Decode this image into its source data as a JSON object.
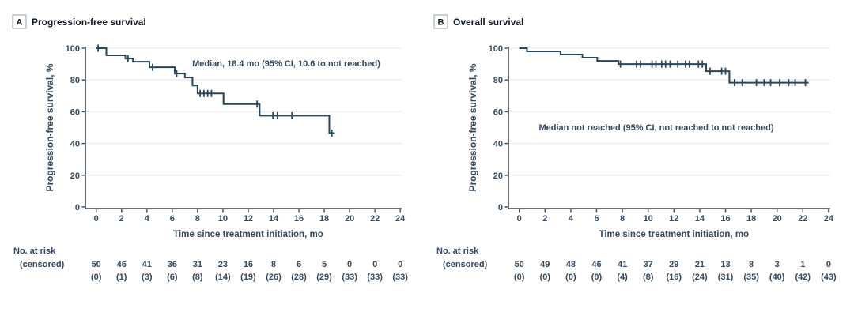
{
  "figure": {
    "background": "#ffffff"
  },
  "colors": {
    "curve": "#2a4658",
    "text": "#35485c",
    "title": "#101820",
    "axis": "#3f4750",
    "grid": "#ececec",
    "box_border": "#9aa0a6"
  },
  "chart_data": [
    {
      "type": "km_step",
      "panel_label": "A",
      "title": "Progression-free survival",
      "ylabel": "Progression-free survival, %",
      "xlabel": "Time since treatment initiation, mo",
      "annotation": "Median, 18.4 mo (95% CI, 10.6 to not reached)",
      "xlim": [
        0,
        24
      ],
      "ylim": [
        0,
        100
      ],
      "xticks": [
        0,
        2,
        4,
        6,
        8,
        10,
        12,
        14,
        16,
        18,
        20,
        22,
        24
      ],
      "yticks": [
        0,
        20,
        40,
        60,
        80,
        100
      ],
      "grid": "horizontal",
      "steps": [
        [
          0,
          100
        ],
        [
          0.8,
          95.5
        ],
        [
          2.3,
          93.5
        ],
        [
          2.9,
          91.5
        ],
        [
          4.2,
          88
        ],
        [
          6.2,
          84
        ],
        [
          7.0,
          81.5
        ],
        [
          7.6,
          76.5
        ],
        [
          8.0,
          71.5
        ],
        [
          10.05,
          64.8
        ],
        [
          12.9,
          57.5
        ],
        [
          18.4,
          46.5
        ]
      ],
      "end_time": 18.85,
      "censors": [
        [
          0.15,
          100
        ],
        [
          2.5,
          93.5
        ],
        [
          4.45,
          88
        ],
        [
          6.35,
          84
        ],
        [
          8.2,
          71.5
        ],
        [
          8.5,
          71.5
        ],
        [
          8.8,
          71.5
        ],
        [
          9.1,
          71.5
        ],
        [
          10.05,
          68
        ],
        [
          12.7,
          64.8
        ],
        [
          13.95,
          57.5
        ],
        [
          14.3,
          57.5
        ],
        [
          15.45,
          57.5
        ],
        [
          18.6,
          46.5
        ]
      ],
      "risk_label_line1": "No. at risk",
      "risk_label_line2": "(censored)",
      "risk_times": [
        0,
        2,
        4,
        6,
        8,
        10,
        12,
        14,
        16,
        18,
        20,
        22,
        24
      ],
      "at_risk": [
        "50",
        "46",
        "41",
        "36",
        "31",
        "23",
        "16",
        "8",
        "6",
        "5",
        "0",
        "0",
        "0"
      ],
      "censored": [
        "(0)",
        "(1)",
        "(3)",
        "(6)",
        "(8)",
        "(14)",
        "(19)",
        "(26)",
        "(28)",
        "(29)",
        "(33)",
        "(33)",
        "(33)"
      ]
    },
    {
      "type": "km_step",
      "panel_label": "B",
      "title": "Overall survival",
      "ylabel": "Progression-free survival, %",
      "xlabel": "Time since treatment initiation, mo",
      "annotation": "Median not reached (95% CI, not reached to not reached)",
      "xlim": [
        0,
        24
      ],
      "ylim": [
        0,
        100
      ],
      "xticks": [
        0,
        2,
        4,
        6,
        8,
        10,
        12,
        14,
        16,
        18,
        20,
        22,
        24
      ],
      "yticks": [
        0,
        20,
        40,
        60,
        80,
        100
      ],
      "grid": "horizontal",
      "steps": [
        [
          0,
          100
        ],
        [
          0.6,
          98
        ],
        [
          3.2,
          96
        ],
        [
          4.9,
          94
        ],
        [
          6.05,
          92
        ],
        [
          7.7,
          90
        ],
        [
          14.5,
          85.5
        ],
        [
          16.3,
          78.3
        ]
      ],
      "end_time": 22.45,
      "censors": [
        [
          7.85,
          90
        ],
        [
          9.1,
          90
        ],
        [
          9.4,
          90
        ],
        [
          10.3,
          90
        ],
        [
          10.6,
          90
        ],
        [
          11.05,
          90
        ],
        [
          11.35,
          90
        ],
        [
          11.7,
          90
        ],
        [
          12.3,
          90
        ],
        [
          12.9,
          90
        ],
        [
          13.2,
          90
        ],
        [
          13.9,
          90
        ],
        [
          14.2,
          90
        ],
        [
          14.8,
          85.5
        ],
        [
          15.7,
          85.5
        ],
        [
          16.0,
          85.5
        ],
        [
          16.7,
          78.3
        ],
        [
          17.3,
          78.3
        ],
        [
          18.4,
          78.3
        ],
        [
          19.0,
          78.3
        ],
        [
          19.5,
          78.3
        ],
        [
          20.2,
          78.3
        ],
        [
          20.9,
          78.3
        ],
        [
          21.4,
          78.3
        ],
        [
          22.2,
          78.3
        ]
      ],
      "risk_label_line1": "No. at risk",
      "risk_label_line2": "(censored)",
      "risk_times": [
        0,
        2,
        4,
        6,
        8,
        10,
        12,
        14,
        16,
        18,
        20,
        22,
        24
      ],
      "at_risk": [
        "50",
        "49",
        "48",
        "46",
        "41",
        "37",
        "29",
        "21",
        "13",
        "8",
        "3",
        "1",
        "0"
      ],
      "censored": [
        "(0)",
        "(0)",
        "(0)",
        "(0)",
        "(4)",
        "(8)",
        "(16)",
        "(24)",
        "(31)",
        "(35)",
        "(40)",
        "(42)",
        "(43)"
      ]
    }
  ]
}
